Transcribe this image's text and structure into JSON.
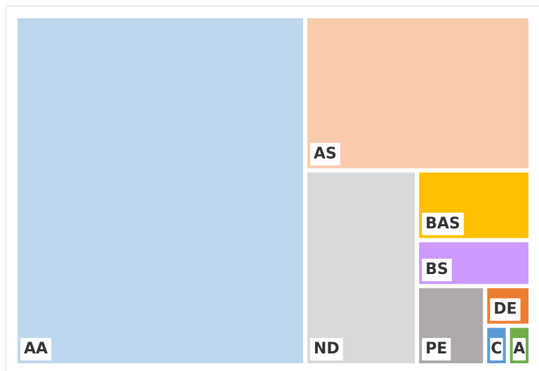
{
  "chart_data": {
    "type": "treemap",
    "categories": [
      "AA",
      "AS",
      "ND",
      "BAS",
      "BS",
      "PE",
      "DE",
      "C",
      "A"
    ],
    "values": [
      56.2,
      19.3,
      12.1,
      4.4,
      2.9,
      3.0,
      1.0,
      0.5,
      0.5
    ],
    "colors": [
      "#bdd7ee",
      "#f8cbad",
      "#d9d9d9",
      "#ffc000",
      "#cc99ff",
      "#aeaaaa",
      "#ed7d31",
      "#5b9bd5",
      "#70ad47"
    ]
  }
}
